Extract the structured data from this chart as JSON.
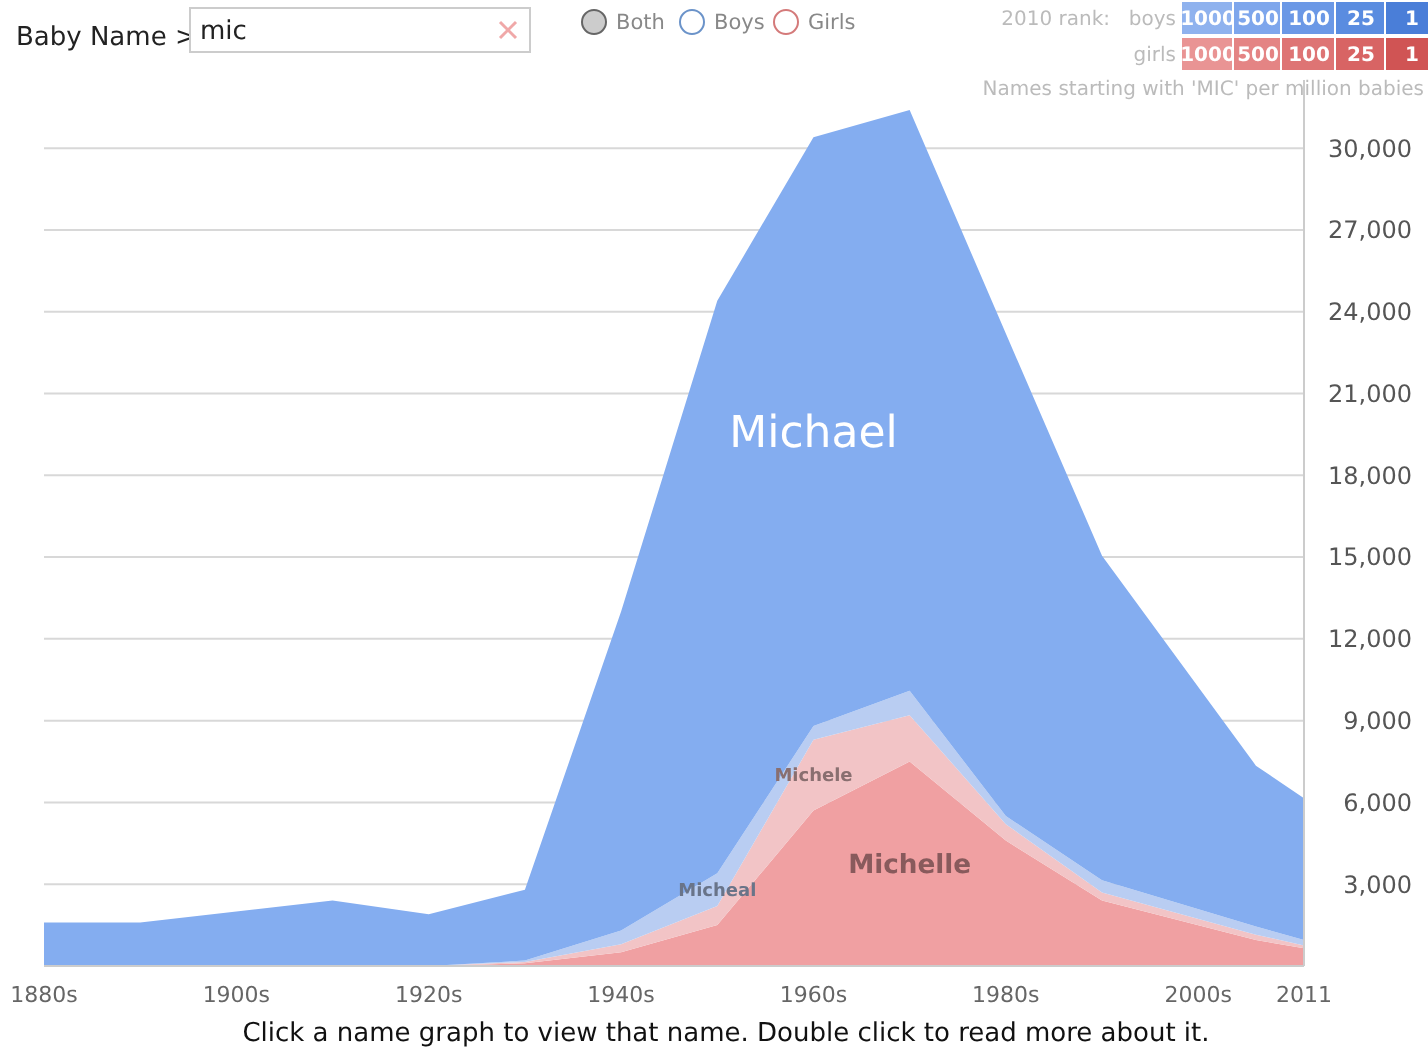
{
  "chart_data": {
    "type": "area",
    "stacked": true,
    "subtitle": "Names starting with 'MIC' per million babies",
    "x": [
      1880,
      1890,
      1900,
      1910,
      1920,
      1930,
      1940,
      1950,
      1960,
      1970,
      1980,
      1990,
      2006,
      2011
    ],
    "series": [
      {
        "name": "Michelle",
        "color": "#f0a0a2",
        "values": [
          0,
          0,
          0,
          0,
          0,
          100,
          500,
          1500,
          5700,
          7500,
          4600,
          2400,
          950,
          650
        ]
      },
      {
        "name": "Michele",
        "color": "#f2c4c6",
        "values": [
          0,
          0,
          0,
          0,
          0,
          50,
          300,
          700,
          2600,
          1700,
          600,
          300,
          200,
          100
        ]
      },
      {
        "name": "Micheal",
        "color": "#b9cdf2",
        "values": [
          0,
          0,
          0,
          0,
          0,
          50,
          500,
          1200,
          500,
          900,
          300,
          450,
          300,
          200
        ]
      },
      {
        "name": "Michael",
        "color": "#84adf0",
        "values": [
          1600,
          1600,
          2000,
          2400,
          1900,
          2600,
          11700,
          21000,
          21600,
          21300,
          17700,
          11900,
          5900,
          5200
        ]
      }
    ],
    "xlim": [
      1880,
      2011
    ],
    "xticks": [
      {
        "value": 1880,
        "label": "1880s"
      },
      {
        "value": 1900,
        "label": "1900s"
      },
      {
        "value": 1920,
        "label": "1920s"
      },
      {
        "value": 1940,
        "label": "1940s"
      },
      {
        "value": 1960,
        "label": "1960s"
      },
      {
        "value": 1980,
        "label": "1980s"
      },
      {
        "value": 2000,
        "label": "2000s"
      },
      {
        "value": 2011,
        "label": "2011"
      }
    ],
    "ylim": [
      0,
      32500
    ],
    "yticks": [
      {
        "value": 3000,
        "label": "3,000"
      },
      {
        "value": 6000,
        "label": "6,000"
      },
      {
        "value": 9000,
        "label": "9,000"
      },
      {
        "value": 12000,
        "label": "12,000"
      },
      {
        "value": 15000,
        "label": "15,000"
      },
      {
        "value": 18000,
        "label": "18,000"
      },
      {
        "value": 21000,
        "label": "21,000"
      },
      {
        "value": 24000,
        "label": "24,000"
      },
      {
        "value": 27000,
        "label": "27,000"
      },
      {
        "value": 30000,
        "label": "30,000"
      }
    ],
    "grid": "y",
    "annotations": [
      "Baby Name >",
      "mic",
      "Both",
      "Boys",
      "Girls",
      "2010 rank:",
      "boys",
      "girls",
      "1000",
      "500",
      "100",
      "25",
      "1",
      "Click a name graph to view that name. Double click to read more about it."
    ]
  }
}
